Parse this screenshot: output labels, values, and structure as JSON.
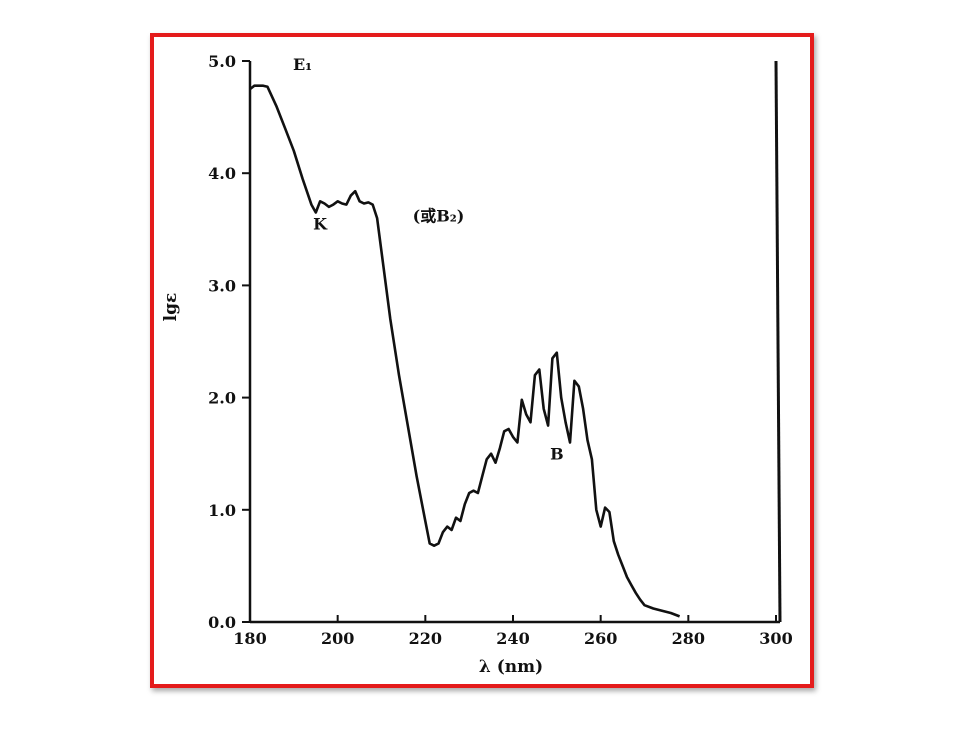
{
  "chart_data": {
    "type": "line",
    "xlabel": "λ (nm)",
    "ylabel": "lgε",
    "xlim": [
      180,
      300
    ],
    "ylim": [
      0,
      5
    ],
    "x_ticks": [
      "180",
      "200",
      "220",
      "240",
      "260",
      "280",
      "300"
    ],
    "y_ticks": [
      "5.0",
      "4.0",
      "3.0",
      "2.0",
      "1.0",
      "0.0"
    ],
    "grid": false,
    "series": [
      {
        "x": [
          180,
          181,
          182,
          183,
          184,
          186,
          188,
          190,
          192,
          194,
          195,
          196,
          197,
          198,
          199,
          200,
          201,
          202,
          203,
          204,
          205,
          206,
          207,
          208,
          209,
          210,
          212,
          214,
          216,
          218,
          220,
          221,
          222,
          223,
          224,
          225,
          226,
          227,
          228,
          229,
          230,
          231,
          232,
          233,
          234,
          235,
          236,
          237,
          238,
          239,
          240,
          241,
          242,
          243,
          244,
          245,
          246,
          247,
          248,
          249,
          250,
          251,
          252,
          253,
          254,
          255,
          256,
          257,
          258,
          259,
          260,
          261,
          262,
          263,
          264,
          265,
          266,
          267,
          268,
          269,
          270,
          272,
          274,
          276,
          278
        ],
        "y": [
          4.75,
          4.78,
          4.78,
          4.78,
          4.77,
          4.6,
          4.4,
          4.2,
          3.95,
          3.72,
          3.65,
          3.75,
          3.73,
          3.7,
          3.72,
          3.75,
          3.73,
          3.72,
          3.8,
          3.84,
          3.75,
          3.73,
          3.74,
          3.72,
          3.6,
          3.3,
          2.7,
          2.2,
          1.75,
          1.3,
          0.9,
          0.7,
          0.68,
          0.7,
          0.8,
          0.85,
          0.82,
          0.93,
          0.9,
          1.05,
          1.15,
          1.17,
          1.15,
          1.3,
          1.45,
          1.5,
          1.42,
          1.55,
          1.7,
          1.72,
          1.65,
          1.6,
          1.98,
          1.85,
          1.78,
          2.2,
          2.25,
          1.9,
          1.75,
          2.35,
          2.4,
          2.0,
          1.78,
          1.6,
          2.15,
          2.1,
          1.9,
          1.62,
          1.45,
          1.0,
          0.85,
          1.02,
          0.98,
          0.72,
          0.6,
          0.5,
          0.4,
          0.33,
          0.26,
          0.2,
          0.15,
          0.12,
          0.1,
          0.08,
          0.05
        ]
      }
    ],
    "annotations": [
      {
        "text": "E₁",
        "x": 192,
        "y": 4.92
      },
      {
        "text": "K",
        "x": 196,
        "y": 3.5
      },
      {
        "text": "(或B₂)",
        "x": 223,
        "y": 3.57
      },
      {
        "text": "B",
        "x": 250,
        "y": 1.45
      }
    ],
    "line_color": "#111111"
  }
}
